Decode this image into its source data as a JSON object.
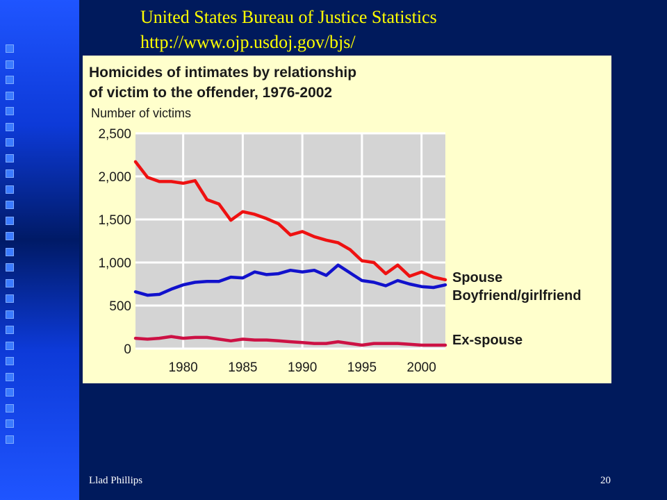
{
  "slide": {
    "header_line1": "United States Bureau of Justice Statistics",
    "header_line2": "http://www.ojp.usdoj.gov/bjs/",
    "footer_left": "Llad Phillips",
    "page_number": "20"
  },
  "colors": {
    "background": "#001a5c",
    "header_text": "#ffff00",
    "panel": "#ffffcc",
    "plot_area": "#d4d4d4",
    "grid": "#ffffff"
  },
  "chart_data": {
    "type": "line",
    "title_line1": "Homicides of intimates by relationship",
    "title_line2": "of victim to the offender, 1976-2002",
    "ylabel": "Number of victims",
    "xlabel": "",
    "xlim": [
      1976,
      2002
    ],
    "ylim": [
      0,
      2500
    ],
    "xticks": [
      1980,
      1985,
      1990,
      1995,
      2000
    ],
    "yticks": [
      0,
      500,
      1000,
      1500,
      2000,
      2500
    ],
    "ytick_labels": [
      "0",
      "500",
      "1,000",
      "1,500",
      "2,000",
      "2,500"
    ],
    "grid": true,
    "legend": "direct labels at right end of lines",
    "x": [
      1976,
      1977,
      1978,
      1979,
      1980,
      1981,
      1982,
      1983,
      1984,
      1985,
      1986,
      1987,
      1988,
      1989,
      1990,
      1991,
      1992,
      1993,
      1994,
      1995,
      1996,
      1997,
      1998,
      1999,
      2000,
      2001,
      2002
    ],
    "series": [
      {
        "name": "Spouse",
        "color": "#ee1111",
        "values": [
          2170,
          1990,
          1940,
          1940,
          1920,
          1950,
          1730,
          1680,
          1490,
          1590,
          1560,
          1510,
          1450,
          1320,
          1360,
          1300,
          1260,
          1230,
          1150,
          1020,
          1000,
          870,
          970,
          840,
          890,
          830,
          800
        ]
      },
      {
        "name": "Boyfriend/girlfriend",
        "color": "#1111cc",
        "values": [
          660,
          620,
          630,
          690,
          740,
          770,
          780,
          780,
          830,
          820,
          890,
          860,
          870,
          910,
          890,
          910,
          850,
          970,
          880,
          790,
          770,
          730,
          790,
          750,
          720,
          710,
          740
        ]
      },
      {
        "name": "Ex-spouse",
        "color": "#cc1144",
        "values": [
          120,
          110,
          120,
          140,
          120,
          130,
          130,
          110,
          90,
          110,
          100,
          100,
          90,
          80,
          70,
          60,
          60,
          80,
          60,
          40,
          60,
          60,
          60,
          50,
          40,
          40,
          40
        ]
      }
    ]
  }
}
